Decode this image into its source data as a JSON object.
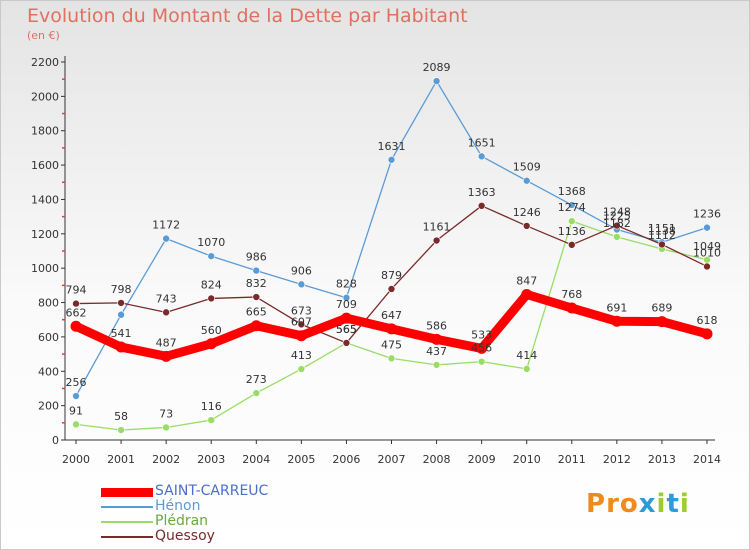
{
  "title": "Evolution du Montant de la Dette par Habitant",
  "subtitle": "(en €)",
  "logo": {
    "text": "Proxiti"
  },
  "chart_data": {
    "type": "line",
    "x": [
      "2000",
      "2001",
      "2002",
      "2003",
      "2004",
      "2005",
      "2006",
      "2007",
      "2008",
      "2009",
      "2010",
      "2011",
      "2012",
      "2013",
      "2014"
    ],
    "ylim": [
      0,
      2200
    ],
    "yticks": [
      0,
      200,
      400,
      600,
      800,
      1000,
      1200,
      1400,
      1600,
      1800,
      2000,
      2200
    ],
    "grid": false,
    "legend_position": "bottom-left",
    "series": [
      {
        "name": "SAINT-CARREUC",
        "color": "#ff0000",
        "width": 9,
        "values": [
          662,
          541,
          487,
          560,
          665,
          607,
          709,
          647,
          586,
          533,
          847,
          768,
          691,
          689,
          618
        ],
        "labels": [
          "662",
          "541",
          "487",
          "560",
          "665",
          "607",
          "709",
          "647",
          "586",
          "533",
          "847",
          "768",
          "691",
          "689",
          "618"
        ]
      },
      {
        "name": "Hénon",
        "color": "#5b9bd5",
        "width": 1.3,
        "values": [
          256,
          729,
          1172,
          1070,
          986,
          906,
          828,
          1631,
          2089,
          1651,
          1509,
          1368,
          1225,
          1151,
          1236
        ],
        "labels": [
          "256",
          "",
          "1172",
          "1070",
          "986",
          "906",
          "828",
          "1631",
          "2089",
          "1651",
          "1509",
          "1368",
          "1225",
          "1151",
          "1236"
        ]
      },
      {
        "name": "Plédran",
        "color": "#99dd66",
        "width": 1.3,
        "values": [
          91,
          58,
          73,
          116,
          273,
          413,
          565,
          475,
          437,
          456,
          414,
          1274,
          1182,
          1112,
          1049
        ],
        "labels": [
          "91",
          "58",
          "73",
          "116",
          "273",
          "413",
          "565",
          "475",
          "437",
          "456",
          "414",
          "1274",
          "1182",
          "1112",
          "1049"
        ]
      },
      {
        "name": "Quessoy",
        "color": "#7a2a2a",
        "width": 1.3,
        "values": [
          794,
          798,
          743,
          824,
          832,
          673,
          565,
          879,
          1161,
          1363,
          1246,
          1136,
          1248,
          1138,
          1010
        ],
        "labels": [
          "794",
          "798",
          "743",
          "824",
          "832",
          "673",
          "565",
          "879",
          "1161",
          "1363",
          "1246",
          "1136",
          "1248",
          "1138",
          "1010"
        ]
      }
    ]
  }
}
